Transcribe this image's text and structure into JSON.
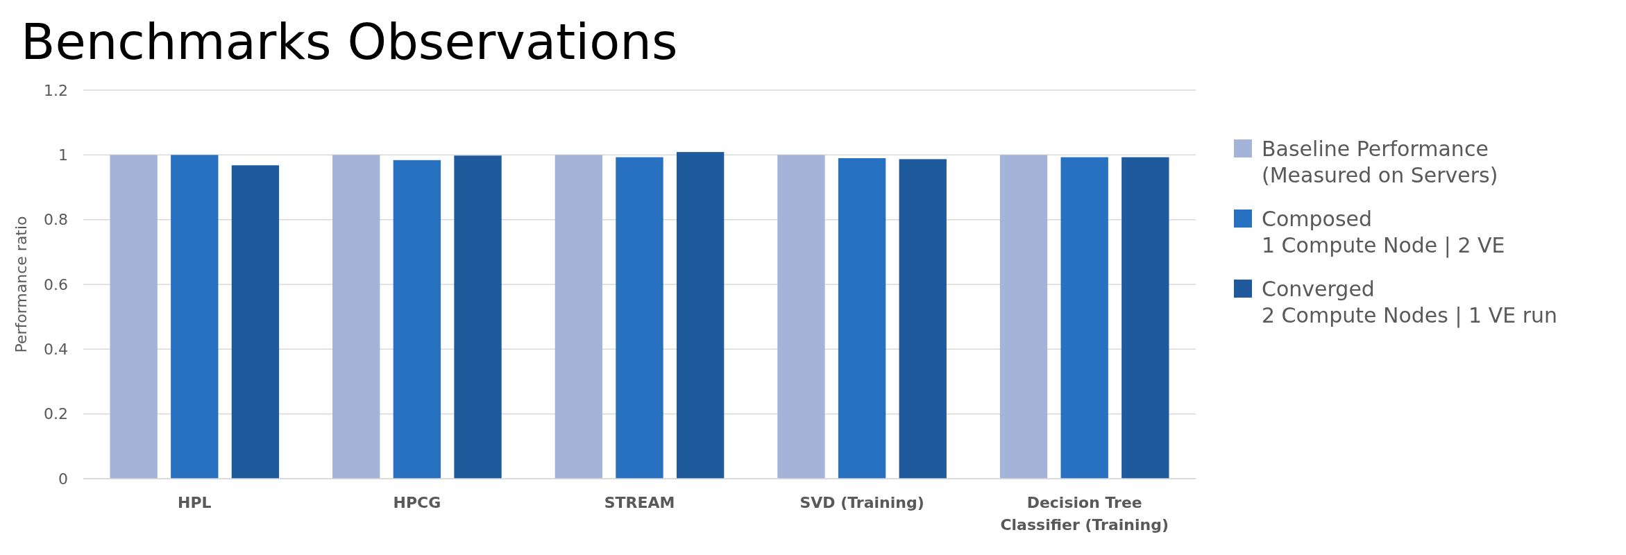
{
  "chart_data": {
    "type": "bar",
    "title": "Benchmarks Observations",
    "ylabel": "Performance ratio",
    "categories": [
      "HPL",
      "HPCG",
      "STREAM",
      "SVD (Training)",
      "Decision Tree Classifier (Training)"
    ],
    "series": [
      {
        "name": "Baseline Performance\n(Measured on Servers)",
        "color": "#a3b4d8",
        "values": [
          1,
          1,
          1,
          1,
          1
        ]
      },
      {
        "name": "Composed\n1 Compute Node | 2 VE",
        "color": "#2870c0",
        "values": [
          1,
          0.984,
          0.993,
          0.99,
          0.993
        ]
      },
      {
        "name": "Converged\n2 Compute Nodes | 1 VE run",
        "color": "#1f5a9c",
        "values": [
          0.968,
          0.998,
          1.009,
          0.987,
          0.993
        ]
      }
    ],
    "ylim": [
      0,
      1.2
    ],
    "yticks": [
      0,
      0.2,
      0.4,
      0.6,
      0.8,
      1,
      1.2
    ],
    "grid": "y",
    "legend": "right"
  }
}
